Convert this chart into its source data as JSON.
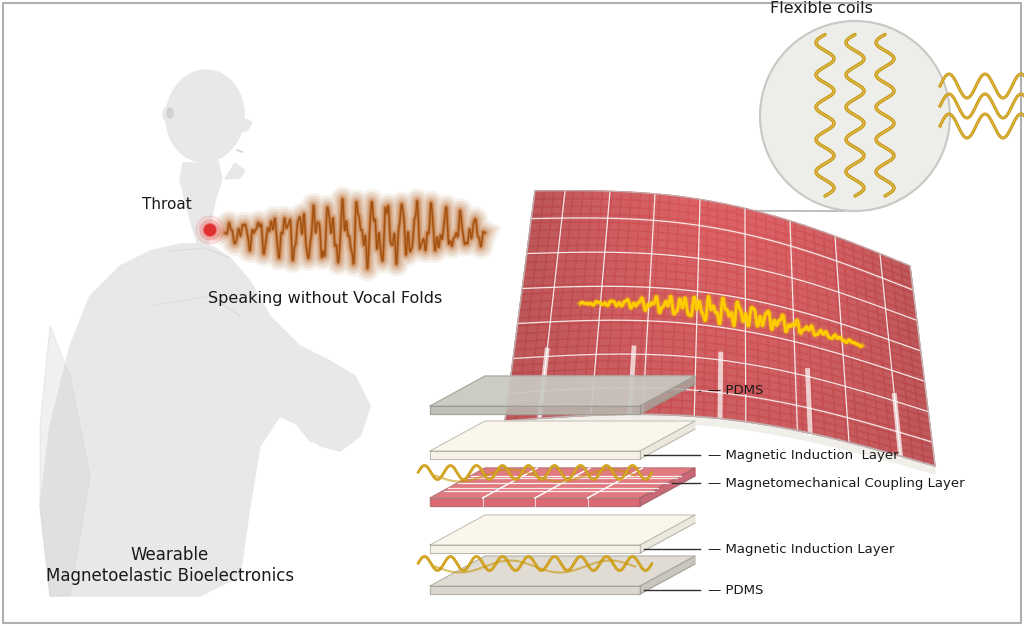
{
  "bg_color": "#ffffff",
  "title_wearable": "Wearable\nMagnetoelastic Bioelectronics",
  "title_speaking": "Speaking without Vocal Folds",
  "label_flexible_coils": "Flexible coils",
  "label_throat": "Throat",
  "layers": [
    "PDMS",
    "Magnetic Induction  Layer",
    "Magnetomechanical Coupling Layer",
    "Magnetic Induction Layer",
    "PDMS"
  ],
  "pink_color": "#d9606a",
  "pink_light": "#e8909a",
  "pink_dark": "#c04050",
  "gold_color": "#c8960a",
  "gold_light": "#e8c050",
  "throat_dot_color": "#e03030",
  "throat_glow_color": "#f06060",
  "waveform_color_dark": "#a05010",
  "waveform_color_mid": "#c07030",
  "waveform_gold": "#e8a000",
  "text_color": "#1a1a1a",
  "human_body_color": "#e8e8e8",
  "human_shadow": "#d0d0d0",
  "layer_pdms_color": "#c8c8c0",
  "layer_pdms_bottom": "#d8d8d0",
  "layer_coil_bg": "#f0ead8",
  "border_color": "#b0b0b0"
}
